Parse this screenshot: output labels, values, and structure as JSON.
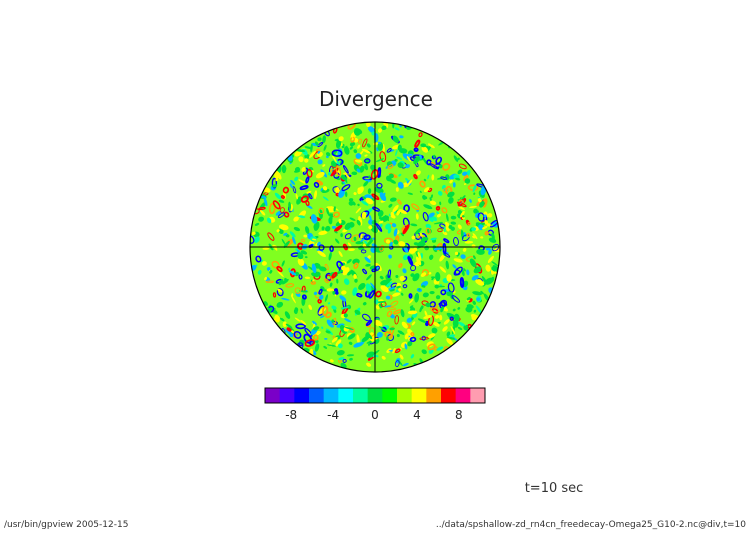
{
  "figure": {
    "title": "Divergence",
    "time_label": "t=10 sec",
    "footer_left": "/usr/bin/gpview  2005-12-15",
    "footer_right": "../data/spshallow-zd_rn4cn_freedecay-Omega25_G10-2.nc@div,t=10"
  },
  "colorbar": {
    "colors": [
      "#7a00c8",
      "#4800ff",
      "#0000ff",
      "#0060ff",
      "#00b8ff",
      "#00ffff",
      "#00ffa0",
      "#00e040",
      "#00ff00",
      "#a8ff00",
      "#ffff00",
      "#ffa000",
      "#ff0000",
      "#ff0080",
      "#ff9cb0"
    ],
    "tick_labels": [
      "-8",
      "-4",
      "0",
      "4",
      "8"
    ],
    "tick_values": [
      -8,
      -4,
      0,
      4,
      8
    ],
    "range": [
      -10.5,
      10.5
    ]
  },
  "map": {
    "projection": "orthographic",
    "background_color": "#80ff20",
    "feature_colors": [
      "#00e040",
      "#ffff00",
      "#ff0000",
      "#0000ff",
      "#00b8ff",
      "#ffa000",
      "#00ffa0"
    ]
  }
}
